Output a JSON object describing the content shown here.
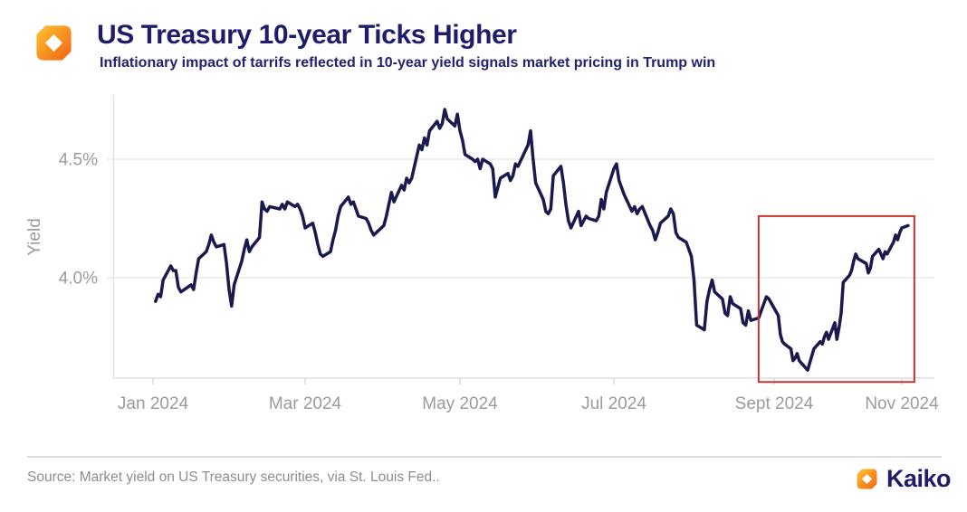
{
  "header": {
    "title": "US Treasury 10-year Ticks Higher",
    "subtitle": "Inflationary impact of tarrifs reflected in 10-year yield signals market pricing in Trump win"
  },
  "footer": {
    "source": "Source: Market yield on US Treasury securities, via St. Louis Fed..",
    "brand": "Kaiko"
  },
  "colors": {
    "navy_text": "#1d1d6b",
    "line": "#1a1a4e",
    "highlight_red": "#c9342e",
    "axis_text_gray": "#9b9b9b",
    "grid_gray": "#e9e9e9",
    "logo_orange_light": "#fdc436",
    "logo_orange_mid": "#f79420",
    "logo_orange_deep": "#f2621b"
  },
  "chart_data": {
    "type": "line",
    "title": "US Treasury 10-year Ticks Higher",
    "xlabel": "",
    "ylabel": "Yield",
    "grid": "horizontal-only",
    "legend": "none",
    "ylim": [
      3.5,
      4.8
    ],
    "y_ticks": [
      {
        "label": "4.5%",
        "value": 4.5
      },
      {
        "label": "4.0%",
        "value": 4.0
      }
    ],
    "x_ticks": [
      {
        "label": "Jan 2024",
        "date": "2024-01-01"
      },
      {
        "label": "Mar 2024",
        "date": "2024-03-01"
      },
      {
        "label": "May 2024",
        "date": "2024-05-01"
      },
      {
        "label": "Jul 2024",
        "date": "2024-07-01"
      },
      {
        "label": "Sept 2024",
        "date": "2024-09-01"
      },
      {
        "label": "Nov 2024",
        "date": "2024-11-01"
      }
    ],
    "highlight_box": {
      "start_date": "2024-08-26",
      "end_date": "2024-11-07",
      "top_value": 4.26,
      "bottom_value": 3.56
    },
    "series": [
      {
        "name": "US Treasury 10-year yield",
        "unit": "%",
        "points": [
          [
            "2024-01-02",
            3.9
          ],
          [
            "2024-01-03",
            3.93
          ],
          [
            "2024-01-04",
            3.92
          ],
          [
            "2024-01-05",
            3.99
          ],
          [
            "2024-01-08",
            4.05
          ],
          [
            "2024-01-09",
            4.03
          ],
          [
            "2024-01-10",
            4.03
          ],
          [
            "2024-01-11",
            3.96
          ],
          [
            "2024-01-12",
            3.94
          ],
          [
            "2024-01-16",
            3.97
          ],
          [
            "2024-01-17",
            3.95
          ],
          [
            "2024-01-18",
            4.02
          ],
          [
            "2024-01-19",
            4.08
          ],
          [
            "2024-01-22",
            4.11
          ],
          [
            "2024-01-23",
            4.14
          ],
          [
            "2024-01-24",
            4.18
          ],
          [
            "2024-01-25",
            4.15
          ],
          [
            "2024-01-26",
            4.13
          ],
          [
            "2024-01-29",
            4.14
          ],
          [
            "2024-01-30",
            4.06
          ],
          [
            "2024-01-31",
            3.95
          ],
          [
            "2024-02-01",
            3.88
          ],
          [
            "2024-02-02",
            3.97
          ],
          [
            "2024-02-05",
            4.07
          ],
          [
            "2024-02-06",
            4.12
          ],
          [
            "2024-02-07",
            4.16
          ],
          [
            "2024-02-08",
            4.11
          ],
          [
            "2024-02-09",
            4.13
          ],
          [
            "2024-02-12",
            4.17
          ],
          [
            "2024-02-13",
            4.32
          ],
          [
            "2024-02-14",
            4.29
          ],
          [
            "2024-02-15",
            4.28
          ],
          [
            "2024-02-16",
            4.3
          ],
          [
            "2024-02-20",
            4.29
          ],
          [
            "2024-02-21",
            4.31
          ],
          [
            "2024-02-22",
            4.29
          ],
          [
            "2024-02-23",
            4.32
          ],
          [
            "2024-02-26",
            4.3
          ],
          [
            "2024-02-27",
            4.31
          ],
          [
            "2024-02-28",
            4.29
          ],
          [
            "2024-02-29",
            4.26
          ],
          [
            "2024-03-01",
            4.21
          ],
          [
            "2024-03-04",
            4.23
          ],
          [
            "2024-03-05",
            4.19
          ],
          [
            "2024-03-06",
            4.14
          ],
          [
            "2024-03-07",
            4.1
          ],
          [
            "2024-03-08",
            4.09
          ],
          [
            "2024-03-11",
            4.11
          ],
          [
            "2024-03-12",
            4.16
          ],
          [
            "2024-03-13",
            4.2
          ],
          [
            "2024-03-14",
            4.26
          ],
          [
            "2024-03-15",
            4.3
          ],
          [
            "2024-03-18",
            4.34
          ],
          [
            "2024-03-19",
            4.31
          ],
          [
            "2024-03-20",
            4.32
          ],
          [
            "2024-03-21",
            4.29
          ],
          [
            "2024-03-22",
            4.26
          ],
          [
            "2024-03-25",
            4.25
          ],
          [
            "2024-03-26",
            4.23
          ],
          [
            "2024-03-27",
            4.2
          ],
          [
            "2024-03-28",
            4.18
          ],
          [
            "2024-04-01",
            4.22
          ],
          [
            "2024-04-02",
            4.26
          ],
          [
            "2024-04-03",
            4.31
          ],
          [
            "2024-04-04",
            4.36
          ],
          [
            "2024-04-05",
            4.32
          ],
          [
            "2024-04-08",
            4.39
          ],
          [
            "2024-04-09",
            4.37
          ],
          [
            "2024-04-10",
            4.42
          ],
          [
            "2024-04-11",
            4.4
          ],
          [
            "2024-04-12",
            4.42
          ],
          [
            "2024-04-15",
            4.56
          ],
          [
            "2024-04-16",
            4.54
          ],
          [
            "2024-04-17",
            4.59
          ],
          [
            "2024-04-18",
            4.56
          ],
          [
            "2024-04-19",
            4.62
          ],
          [
            "2024-04-22",
            4.66
          ],
          [
            "2024-04-23",
            4.63
          ],
          [
            "2024-04-24",
            4.65
          ],
          [
            "2024-04-25",
            4.71
          ],
          [
            "2024-04-26",
            4.67
          ],
          [
            "2024-04-29",
            4.64
          ],
          [
            "2024-04-30",
            4.69
          ],
          [
            "2024-05-01",
            4.62
          ],
          [
            "2024-05-02",
            4.58
          ],
          [
            "2024-05-03",
            4.52
          ],
          [
            "2024-05-06",
            4.5
          ],
          [
            "2024-05-07",
            4.49
          ],
          [
            "2024-05-08",
            4.5
          ],
          [
            "2024-05-09",
            4.46
          ],
          [
            "2024-05-10",
            4.5
          ],
          [
            "2024-05-13",
            4.48
          ],
          [
            "2024-05-14",
            4.46
          ],
          [
            "2024-05-15",
            4.34
          ],
          [
            "2024-05-16",
            4.38
          ],
          [
            "2024-05-17",
            4.42
          ],
          [
            "2024-05-20",
            4.44
          ],
          [
            "2024-05-21",
            4.41
          ],
          [
            "2024-05-22",
            4.43
          ],
          [
            "2024-05-23",
            4.48
          ],
          [
            "2024-05-24",
            4.47
          ],
          [
            "2024-05-28",
            4.56
          ],
          [
            "2024-05-29",
            4.62
          ],
          [
            "2024-05-30",
            4.5
          ],
          [
            "2024-05-31",
            4.4
          ],
          [
            "2024-06-03",
            4.33
          ],
          [
            "2024-06-04",
            4.28
          ],
          [
            "2024-06-05",
            4.27
          ],
          [
            "2024-06-06",
            4.29
          ],
          [
            "2024-06-07",
            4.43
          ],
          [
            "2024-06-10",
            4.47
          ],
          [
            "2024-06-11",
            4.4
          ],
          [
            "2024-06-12",
            4.31
          ],
          [
            "2024-06-13",
            4.24
          ],
          [
            "2024-06-14",
            4.21
          ],
          [
            "2024-06-17",
            4.28
          ],
          [
            "2024-06-18",
            4.22
          ],
          [
            "2024-06-20",
            4.26
          ],
          [
            "2024-06-21",
            4.25
          ],
          [
            "2024-06-24",
            4.24
          ],
          [
            "2024-06-25",
            4.26
          ],
          [
            "2024-06-26",
            4.33
          ],
          [
            "2024-06-27",
            4.29
          ],
          [
            "2024-06-28",
            4.36
          ],
          [
            "2024-07-01",
            4.46
          ],
          [
            "2024-07-02",
            4.48
          ],
          [
            "2024-07-03",
            4.41
          ],
          [
            "2024-07-05",
            4.35
          ],
          [
            "2024-07-08",
            4.28
          ],
          [
            "2024-07-09",
            4.3
          ],
          [
            "2024-07-10",
            4.27
          ],
          [
            "2024-07-11",
            4.29
          ],
          [
            "2024-07-12",
            4.3
          ],
          [
            "2024-07-15",
            4.22
          ],
          [
            "2024-07-16",
            4.2
          ],
          [
            "2024-07-17",
            4.16
          ],
          [
            "2024-07-18",
            4.19
          ],
          [
            "2024-07-19",
            4.23
          ],
          [
            "2024-07-22",
            4.26
          ],
          [
            "2024-07-23",
            4.29
          ],
          [
            "2024-07-24",
            4.27
          ],
          [
            "2024-07-25",
            4.19
          ],
          [
            "2024-07-26",
            4.17
          ],
          [
            "2024-07-29",
            4.15
          ],
          [
            "2024-07-30",
            4.12
          ],
          [
            "2024-07-31",
            4.09
          ],
          [
            "2024-08-01",
            3.99
          ],
          [
            "2024-08-02",
            3.8
          ],
          [
            "2024-08-05",
            3.78
          ],
          [
            "2024-08-06",
            3.9
          ],
          [
            "2024-08-07",
            3.95
          ],
          [
            "2024-08-08",
            3.99
          ],
          [
            "2024-08-09",
            3.94
          ],
          [
            "2024-08-12",
            3.91
          ],
          [
            "2024-08-13",
            3.85
          ],
          [
            "2024-08-14",
            3.84
          ],
          [
            "2024-08-15",
            3.92
          ],
          [
            "2024-08-16",
            3.89
          ],
          [
            "2024-08-19",
            3.87
          ],
          [
            "2024-08-20",
            3.81
          ],
          [
            "2024-08-21",
            3.8
          ],
          [
            "2024-08-22",
            3.86
          ],
          [
            "2024-08-23",
            3.82
          ],
          [
            "2024-08-26",
            3.83
          ],
          [
            "2024-08-27",
            3.86
          ],
          [
            "2024-08-28",
            3.89
          ],
          [
            "2024-08-29",
            3.92
          ],
          [
            "2024-08-30",
            3.91
          ],
          [
            "2024-09-03",
            3.84
          ],
          [
            "2024-09-04",
            3.76
          ],
          [
            "2024-09-05",
            3.73
          ],
          [
            "2024-09-06",
            3.72
          ],
          [
            "2024-09-09",
            3.7
          ],
          [
            "2024-09-10",
            3.65
          ],
          [
            "2024-09-11",
            3.66
          ],
          [
            "2024-09-12",
            3.68
          ],
          [
            "2024-09-13",
            3.65
          ],
          [
            "2024-09-16",
            3.62
          ],
          [
            "2024-09-17",
            3.61
          ],
          [
            "2024-09-18",
            3.64
          ],
          [
            "2024-09-19",
            3.67
          ],
          [
            "2024-09-20",
            3.7
          ],
          [
            "2024-09-23",
            3.73
          ],
          [
            "2024-09-24",
            3.72
          ],
          [
            "2024-09-25",
            3.75
          ],
          [
            "2024-09-26",
            3.77
          ],
          [
            "2024-09-27",
            3.74
          ],
          [
            "2024-09-30",
            3.81
          ],
          [
            "2024-10-01",
            3.74
          ],
          [
            "2024-10-02",
            3.79
          ],
          [
            "2024-10-03",
            3.85
          ],
          [
            "2024-10-04",
            3.98
          ],
          [
            "2024-10-07",
            4.01
          ],
          [
            "2024-10-08",
            4.03
          ],
          [
            "2024-10-09",
            4.07
          ],
          [
            "2024-10-10",
            4.1
          ],
          [
            "2024-10-11",
            4.08
          ],
          [
            "2024-10-15",
            4.06
          ],
          [
            "2024-10-16",
            4.02
          ],
          [
            "2024-10-17",
            4.04
          ],
          [
            "2024-10-18",
            4.09
          ],
          [
            "2024-10-21",
            4.12
          ],
          [
            "2024-10-22",
            4.1
          ],
          [
            "2024-10-23",
            4.08
          ],
          [
            "2024-10-24",
            4.11
          ],
          [
            "2024-10-25",
            4.1
          ],
          [
            "2024-10-28",
            4.15
          ],
          [
            "2024-10-29",
            4.18
          ],
          [
            "2024-10-30",
            4.16
          ],
          [
            "2024-10-31",
            4.19
          ],
          [
            "2024-11-01",
            4.21
          ],
          [
            "2024-11-04",
            4.22
          ]
        ]
      }
    ]
  }
}
